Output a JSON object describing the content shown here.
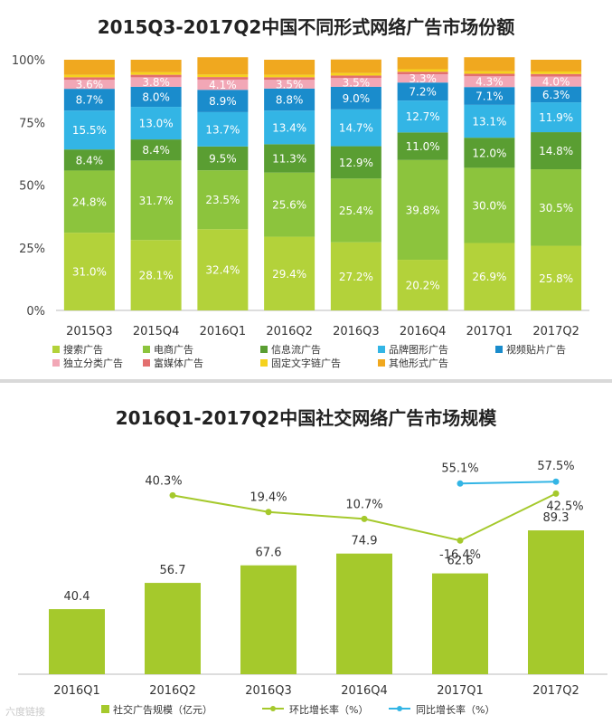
{
  "chart_data": [
    {
      "type": "bar",
      "stacked": true,
      "title": "2015Q3-2017Q2中国不同形式网络广告市场份额",
      "categories": [
        "2015Q3",
        "2015Q4",
        "2016Q1",
        "2016Q2",
        "2016Q3",
        "2016Q4",
        "2017Q1",
        "2017Q2"
      ],
      "ylim": [
        0,
        100
      ],
      "yticks": [
        "0%",
        "25%",
        "50%",
        "75%",
        "100%"
      ],
      "legend_position": "bottom",
      "series": [
        {
          "name": "搜索广告",
          "color": "#b3d23a",
          "values": [
            31.0,
            28.1,
            32.4,
            29.4,
            27.2,
            20.2,
            26.9,
            25.8
          ],
          "labels": [
            "31.0%",
            "28.1%",
            "32.4%",
            "29.4%",
            "27.2%",
            "20.2%",
            "26.9%",
            "25.8%"
          ]
        },
        {
          "name": "电商广告",
          "color": "#8cc43d",
          "values": [
            24.8,
            31.7,
            23.5,
            25.6,
            25.4,
            39.8,
            30.0,
            30.5
          ],
          "labels": [
            "24.8%",
            "31.7%",
            "23.5%",
            "25.6%",
            "25.4%",
            "39.8%",
            "30.0%",
            "30.5%"
          ]
        },
        {
          "name": "信息流广告",
          "color": "#5a9e32",
          "values": [
            8.4,
            8.4,
            9.5,
            11.3,
            12.9,
            11.0,
            12.0,
            14.8
          ],
          "labels": [
            "8.4%",
            "8.4%",
            "9.5%",
            "11.3%",
            "12.9%",
            "11.0%",
            "12.0%",
            "14.8%"
          ]
        },
        {
          "name": "品牌图形广告",
          "color": "#33b5e5",
          "values": [
            15.5,
            13.0,
            13.7,
            13.4,
            14.7,
            12.7,
            13.1,
            11.9
          ],
          "labels": [
            "15.5%",
            "13.0%",
            "13.7%",
            "13.4%",
            "14.7%",
            "12.7%",
            "13.1%",
            "11.9%"
          ]
        },
        {
          "name": "视频贴片广告",
          "color": "#1a8ccc",
          "values": [
            8.7,
            8.0,
            8.9,
            8.8,
            9.0,
            7.2,
            7.1,
            6.3
          ],
          "labels": [
            "8.7%",
            "8.0%",
            "8.9%",
            "8.8%",
            "9.0%",
            "7.2%",
            "7.1%",
            "6.3%"
          ]
        },
        {
          "name": "独立分类广告",
          "color": "#f2a7b6",
          "values": [
            3.6,
            3.8,
            4.1,
            3.5,
            3.5,
            3.3,
            4.3,
            4.0
          ],
          "labels": [
            "3.6%",
            "3.8%",
            "4.1%",
            "3.5%",
            "3.5%",
            "3.3%",
            "4.3%",
            "4.0%"
          ]
        },
        {
          "name": "富媒体广告",
          "color": "#e36f6f",
          "values": [
            1.0,
            1.0,
            1.0,
            1.0,
            1.0,
            1.0,
            1.0,
            1.0
          ],
          "labels": []
        },
        {
          "name": "固定文字链广告",
          "color": "#f5d21e",
          "values": [
            1.0,
            1.0,
            1.0,
            1.0,
            1.0,
            1.0,
            1.0,
            1.0
          ],
          "labels": []
        },
        {
          "name": "其他形式广告",
          "color": "#f0a81f",
          "values": [
            6.0,
            5.0,
            6.9,
            6.0,
            5.4,
            4.8,
            5.6,
            4.7
          ],
          "labels": []
        }
      ]
    },
    {
      "type": "bar+line",
      "title": "2016Q1-2017Q2中国社交网络广告市场规模",
      "categories": [
        "2016Q1",
        "2016Q2",
        "2016Q3",
        "2016Q4",
        "2017Q1",
        "2017Q2"
      ],
      "legend_position": "bottom",
      "bars": {
        "name": "社交广告规模（亿元）",
        "color": "#a5c92c",
        "values": [
          40.4,
          56.7,
          67.6,
          74.9,
          62.6,
          89.3
        ],
        "labels": [
          "40.4",
          "56.7",
          "67.6",
          "74.9",
          "62.6",
          "89.3"
        ]
      },
      "lines": [
        {
          "name": "环比增长率（%）",
          "color": "#a5c92c",
          "values": [
            null,
            40.3,
            19.4,
            10.7,
            -16.4,
            42.5
          ],
          "labels": [
            "",
            "40.3%",
            "19.4%",
            "10.7%",
            "-16.4%",
            "42.5%"
          ]
        },
        {
          "name": "同比增长率（%）",
          "color": "#33b5e5",
          "values": [
            null,
            null,
            null,
            null,
            55.1,
            57.5
          ],
          "labels": [
            "",
            "",
            "",
            "",
            "55.1%",
            "57.5%"
          ]
        }
      ]
    }
  ],
  "watermark": "六度链接"
}
